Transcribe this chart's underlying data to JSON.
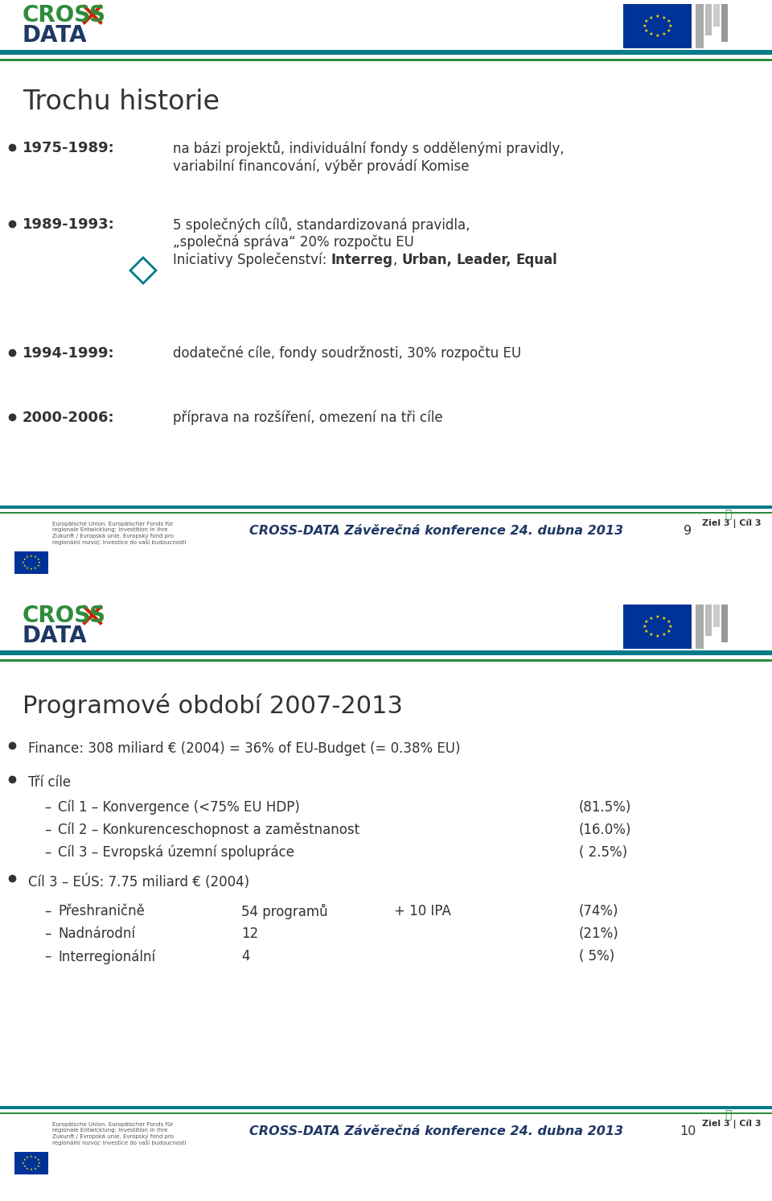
{
  "bg_color": "#ffffff",
  "teal_color": "#007B8A",
  "green_color": "#2E8B3C",
  "dark_blue": "#1F3864",
  "page1": {
    "title": "Trochu historie",
    "items": [
      {
        "year": "1975-1989:",
        "lines": [
          "na bázi projektů, individuální fondy s oddělenými pravidly,",
          "variabilní financování, výběr provádí Komise"
        ],
        "has_diamond": false
      },
      {
        "year": "1989-1993:",
        "lines": [
          "5 společných cílů, standardizovaná pravidla,",
          "„společná správa“ 20% rozpočtu EU",
          "Iniciativy Společenství: Interreg, Urban, Leader, Equal"
        ],
        "has_diamond": true
      },
      {
        "year": "1994-1999:",
        "lines": [
          "dodatečné cíle, fondy soudržnosti, 30% rozpočtu EU"
        ],
        "has_diamond": false
      },
      {
        "year": "2000-2006:",
        "lines": [
          "příprava na rozšíření, omezení na tři cíle"
        ],
        "has_diamond": false
      }
    ],
    "footer_text": "CROSS-DATA Závěrečná konference 24. dubna 2013",
    "page_num": "9"
  },
  "page2": {
    "title": "Programové období 2007-2013",
    "bullet1": "Finance: 308 miliard € (2004) = 36% of EU-Budget (= 0.38% EU)",
    "bullet2": "Tří cíle",
    "sub_items": [
      {
        "label": "Cíl 1 – Konvergence (<75% EU HDP)",
        "value": "(81.5%)"
      },
      {
        "label": "Cíl 2 – Konkurenceschopnost a zaměstnanost",
        "value": "(16.0%)"
      },
      {
        "label": "Cíl 3 – Evropská územní spolupráce",
        "value": "( 2.5%)"
      }
    ],
    "bullet3": "Cíl 3 – EÚS: 7.75 miliard € (2004)",
    "sub_items2": [
      {
        "label": "Přeshraničně",
        "col2": "54 programů",
        "col3": "+ 10 IPA",
        "value": "(74%)"
      },
      {
        "label": "Nadnárodní",
        "col2": "12",
        "col3": "",
        "value": "(21%)"
      },
      {
        "label": "Interregionální",
        "col2": "4",
        "col3": "",
        "value": "( 5%)"
      }
    ],
    "footer_text": "CROSS-DATA Závěrečná konference 24. dubna 2013",
    "page_num": "10"
  }
}
